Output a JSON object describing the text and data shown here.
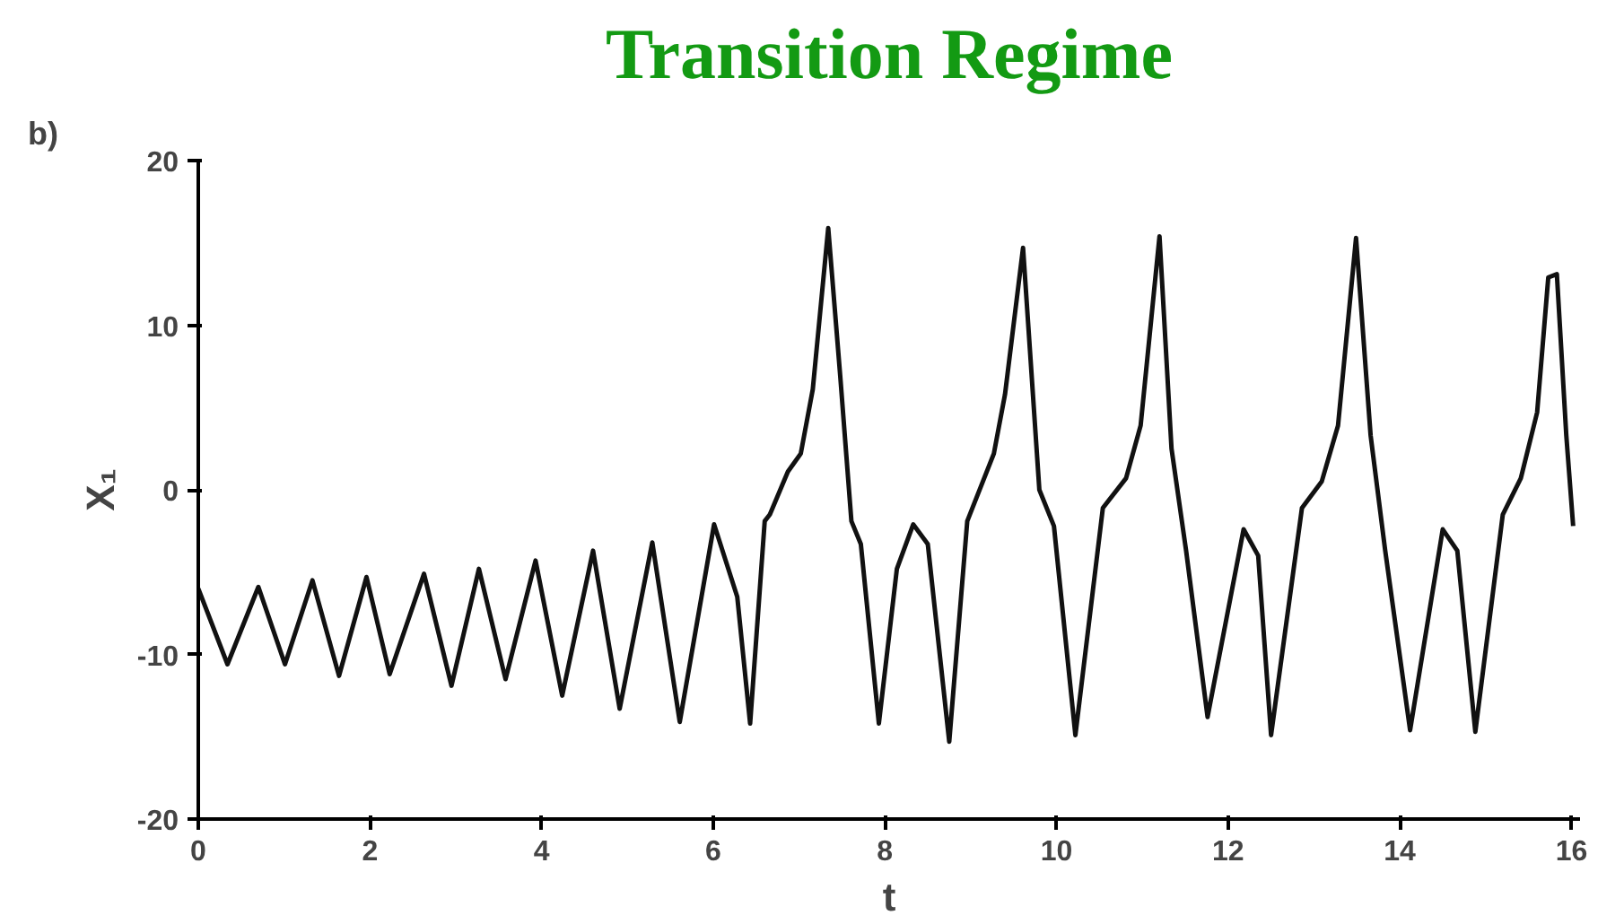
{
  "chart_data": {
    "type": "line",
    "title": "Transition Regime",
    "xlabel": "t",
    "ylabel": "X₁",
    "annotations": [
      "b)"
    ],
    "xlim": [
      0,
      16.1
    ],
    "ylim": [
      -20,
      20
    ],
    "xticks": [
      0,
      2,
      4,
      6,
      8,
      10,
      12,
      14,
      16
    ],
    "yticks": [
      -20,
      -10,
      0,
      10,
      20
    ],
    "grid": false,
    "line_style": "solid",
    "marker": "none",
    "series": [
      {
        "color": "#111111",
        "x": [
          0.0,
          0.34,
          0.7,
          1.01,
          1.33,
          1.64,
          1.96,
          2.23,
          2.63,
          2.95,
          3.27,
          3.58,
          3.93,
          4.24,
          4.6,
          4.91,
          5.29,
          5.61,
          6.01,
          6.28,
          6.43,
          6.6,
          6.66,
          6.87,
          7.02,
          7.16,
          7.34,
          7.48,
          7.61,
          7.72,
          7.93,
          8.14,
          8.33,
          8.5,
          8.75,
          8.96,
          9.27,
          9.4,
          9.61,
          9.8,
          9.97,
          10.22,
          10.54,
          10.81,
          10.98,
          11.2,
          11.34,
          11.51,
          11.76,
          12.18,
          12.35,
          12.5,
          12.86,
          13.09,
          13.28,
          13.49,
          13.66,
          13.83,
          14.12,
          14.5,
          14.67,
          14.88,
          15.2,
          15.41,
          15.6,
          15.73,
          15.83,
          15.94,
          16.02
        ],
        "values": [
          -6.0,
          -10.6,
          -5.9,
          -10.6,
          -5.5,
          -11.3,
          -5.3,
          -11.2,
          -5.1,
          -11.9,
          -4.8,
          -11.5,
          -4.3,
          -12.5,
          -3.7,
          -13.3,
          -3.2,
          -14.1,
          -2.1,
          -6.5,
          -14.2,
          -1.9,
          -1.5,
          1.1,
          2.2,
          6.1,
          15.9,
          6.9,
          -1.9,
          -3.3,
          -14.2,
          -4.8,
          -2.1,
          -3.3,
          -15.3,
          -1.9,
          2.2,
          5.8,
          14.7,
          0.0,
          -2.2,
          -14.9,
          -1.1,
          0.7,
          3.9,
          15.4,
          2.5,
          -3.7,
          -13.8,
          -2.4,
          -4.0,
          -14.9,
          -1.1,
          0.5,
          3.9,
          15.3,
          3.3,
          -3.7,
          -14.6,
          -2.4,
          -3.7,
          -14.7,
          -1.5,
          0.7,
          4.7,
          12.9,
          13.1,
          3.3,
          -2.2
        ]
      }
    ]
  }
}
